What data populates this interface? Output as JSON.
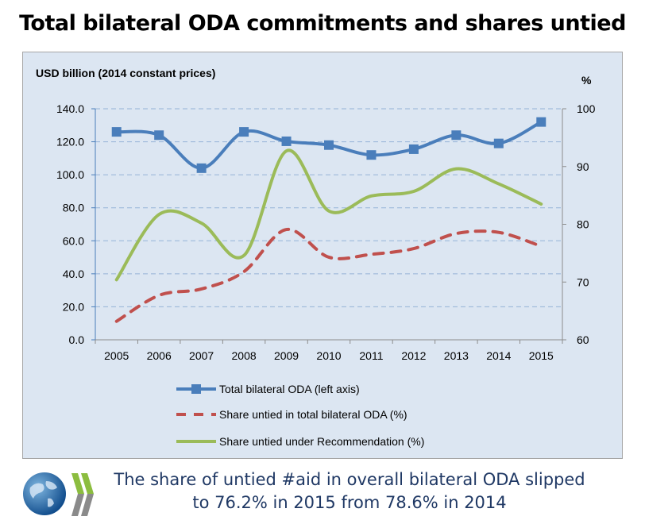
{
  "chart_data": {
    "type": "line",
    "title": "Total bilateral ODA commitments and shares untied",
    "ylabel_left": "USD billion (2014 constant prices)",
    "ylabel_right": "%",
    "categories": [
      "2005",
      "2006",
      "2007",
      "2008",
      "2009",
      "2010",
      "2011",
      "2012",
      "2013",
      "2014",
      "2015"
    ],
    "ylim_left": [
      0,
      140
    ],
    "yticks_left": [
      "0.0",
      "20.0",
      "40.0",
      "60.0",
      "80.0",
      "100.0",
      "120.0",
      "140.0"
    ],
    "ylim_right": [
      60,
      100
    ],
    "yticks_right": [
      "60",
      "70",
      "80",
      "90",
      "100"
    ],
    "grid": true,
    "legend_position": "bottom",
    "series": [
      {
        "name": "Total bilateral ODA (left axis)",
        "axis": "left",
        "color": "#4a7ebb",
        "style": "solid-markers",
        "values": [
          126,
          124,
          104,
          126,
          120.3,
          118,
          112,
          115.5,
          124,
          119,
          132
        ]
      },
      {
        "name": "Share untied in total bilateral ODA (%)",
        "axis": "right",
        "color": "#c0504d",
        "style": "dashed",
        "values": [
          63.2,
          67.7,
          68.8,
          71.8,
          79.1,
          74.3,
          74.8,
          75.8,
          78.4,
          78.6,
          76.2
        ]
      },
      {
        "name": "Share untied under Recommendation (%)",
        "axis": "right",
        "color": "#9bbb59",
        "style": "solid",
        "values": [
          70.4,
          81.7,
          80.2,
          74.6,
          92.7,
          82.3,
          84.9,
          85.7,
          89.6,
          87,
          83.5
        ]
      }
    ]
  },
  "footer": {
    "line1": "The share of untied #aid in overall bilateral ODA slipped",
    "line2": "to 76.2% in 2015 from 78.6% in 2014"
  },
  "logo": {
    "icon": "globe-chevrons-icon"
  }
}
